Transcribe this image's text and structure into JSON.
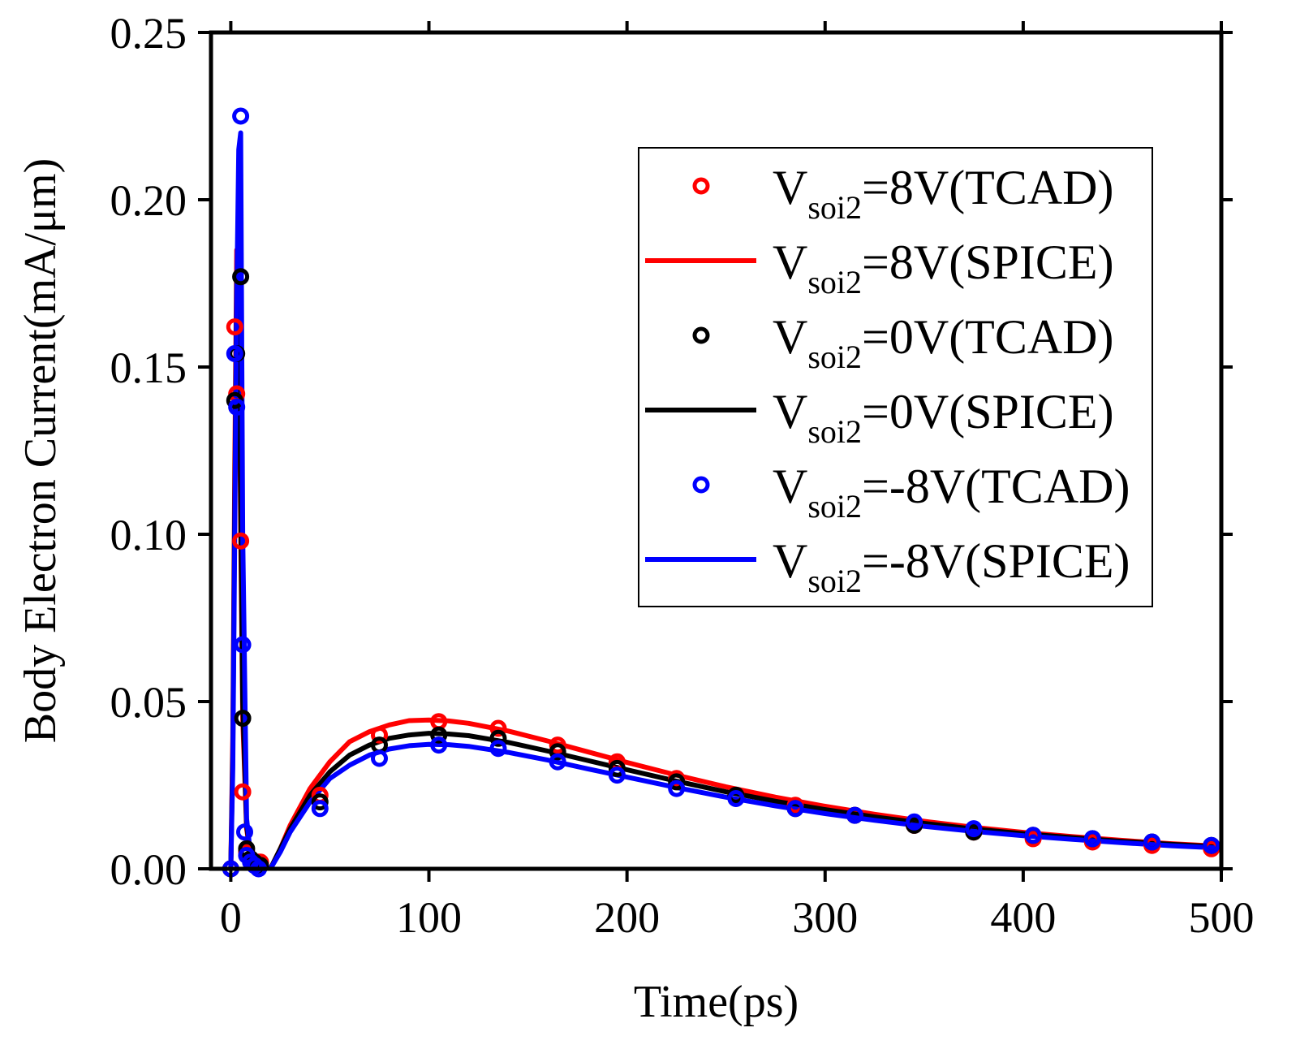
{
  "chart_data": {
    "type": "line",
    "title": "",
    "xlabel": "Time(ps)",
    "ylabel": "Body Electron Current(mA/μm)",
    "xlim": [
      -10,
      500
    ],
    "ylim": [
      0,
      0.25
    ],
    "xticks": [
      0,
      100,
      200,
      300,
      400,
      500
    ],
    "xtick_labels": [
      "0",
      "100",
      "200",
      "300",
      "400",
      "500"
    ],
    "yticks": [
      0,
      0.05,
      0.1,
      0.15,
      0.2,
      0.25
    ],
    "ytick_labels": [
      "0.00",
      "0.05",
      "0.10",
      "0.15",
      "0.20",
      "0.25"
    ],
    "legend_position": "top-right",
    "grid": false,
    "series": [
      {
        "name": "Vsoi2=8V(TCAD)",
        "legend_main": "V",
        "legend_sub": "soi2",
        "legend_rest": "=8V(TCAD)",
        "kind": "marker",
        "color": "#ff0000",
        "x": [
          0,
          2,
          3,
          5,
          6,
          8,
          10,
          12,
          14,
          15,
          45,
          75,
          105,
          135,
          165,
          195,
          225,
          255,
          285,
          315,
          345,
          375,
          405,
          435,
          465,
          495
        ],
        "y": [
          0,
          0.162,
          0.142,
          0.098,
          0.023,
          0.005,
          0.003,
          0.002,
          0.002,
          0.002,
          0.022,
          0.04,
          0.044,
          0.042,
          0.037,
          0.032,
          0.027,
          0.022,
          0.019,
          0.016,
          0.013,
          0.011,
          0.009,
          0.008,
          0.007,
          0.006
        ]
      },
      {
        "name": "Vsoi2=8V(SPICE)",
        "legend_main": "V",
        "legend_sub": "soi2",
        "legend_rest": "=8V(SPICE)",
        "kind": "line",
        "color": "#ff0000",
        "x": [
          0,
          1,
          2,
          3,
          4,
          5,
          6,
          8,
          10,
          14,
          18,
          20,
          25,
          30,
          40,
          50,
          60,
          70,
          80,
          90,
          100,
          110,
          120,
          140,
          160,
          180,
          200,
          225,
          250,
          275,
          300,
          325,
          350,
          375,
          400,
          425,
          450,
          475,
          500
        ],
        "y": [
          0,
          0.04,
          0.12,
          0.185,
          0.17,
          0.1,
          0.045,
          0.012,
          0.004,
          0.001,
          0.0,
          0.0,
          0.006,
          0.013,
          0.024,
          0.032,
          0.038,
          0.041,
          0.043,
          0.0443,
          0.0445,
          0.0442,
          0.0435,
          0.0412,
          0.0382,
          0.035,
          0.0318,
          0.028,
          0.0245,
          0.0214,
          0.0187,
          0.0163,
          0.0142,
          0.0124,
          0.0109,
          0.0096,
          0.0085,
          0.0075,
          0.0067
        ]
      },
      {
        "name": "Vsoi2=0V(TCAD)",
        "legend_main": "V",
        "legend_sub": "soi2",
        "legend_rest": "=0V(TCAD)",
        "kind": "marker",
        "color": "#000000",
        "x": [
          0,
          2,
          3,
          5,
          6,
          8,
          10,
          12,
          14,
          15,
          45,
          75,
          105,
          135,
          165,
          195,
          225,
          255,
          285,
          315,
          345,
          375,
          405,
          435,
          465,
          495
        ],
        "y": [
          0,
          0.14,
          0.154,
          0.177,
          0.045,
          0.006,
          0.003,
          0.002,
          0.001,
          0.001,
          0.02,
          0.037,
          0.04,
          0.039,
          0.035,
          0.03,
          0.026,
          0.022,
          0.018,
          0.016,
          0.013,
          0.011,
          0.01,
          0.009,
          0.008,
          0.007
        ]
      },
      {
        "name": "Vsoi2=0V(SPICE)",
        "legend_main": "V",
        "legend_sub": "soi2",
        "legend_rest": "=0V(SPICE)",
        "kind": "line",
        "color": "#000000",
        "x": [
          0,
          1,
          2,
          3,
          4,
          5,
          6,
          8,
          10,
          14,
          18,
          20,
          25,
          30,
          40,
          50,
          60,
          70,
          80,
          90,
          100,
          110,
          120,
          140,
          160,
          180,
          200,
          225,
          250,
          275,
          300,
          325,
          350,
          375,
          400,
          425,
          450,
          475,
          500
        ],
        "y": [
          0,
          0.035,
          0.11,
          0.175,
          0.175,
          0.11,
          0.05,
          0.013,
          0.004,
          0.001,
          0.0,
          0.0,
          0.006,
          0.012,
          0.022,
          0.029,
          0.034,
          0.037,
          0.039,
          0.04,
          0.0405,
          0.0403,
          0.0398,
          0.0378,
          0.0352,
          0.0324,
          0.0296,
          0.0262,
          0.023,
          0.0202,
          0.0177,
          0.0155,
          0.0136,
          0.0119,
          0.0105,
          0.0093,
          0.0082,
          0.0073,
          0.0065
        ]
      },
      {
        "name": "Vsoi2=-8V(TCAD)",
        "legend_main": "V",
        "legend_sub": "soi2",
        "legend_rest": "=-8V(TCAD)",
        "kind": "marker",
        "color": "#0000ff",
        "x": [
          0,
          2,
          3,
          5,
          6,
          7,
          8,
          10,
          12,
          14,
          45,
          75,
          105,
          135,
          165,
          195,
          225,
          255,
          285,
          315,
          345,
          375,
          405,
          435,
          465,
          495
        ],
        "y": [
          0,
          0.154,
          0.138,
          0.225,
          0.067,
          0.011,
          0.004,
          0.002,
          0.001,
          0.0,
          0.018,
          0.033,
          0.037,
          0.036,
          0.032,
          0.028,
          0.024,
          0.021,
          0.018,
          0.016,
          0.014,
          0.012,
          0.01,
          0.009,
          0.008,
          0.007
        ]
      },
      {
        "name": "Vsoi2=-8V(SPICE)",
        "legend_main": "V",
        "legend_sub": "soi2",
        "legend_rest": "=-8V(SPICE)",
        "kind": "line",
        "color": "#0000ff",
        "x": [
          0,
          1,
          2,
          3,
          4,
          5,
          6,
          8,
          10,
          14,
          18,
          20,
          25,
          30,
          40,
          50,
          60,
          70,
          80,
          90,
          100,
          110,
          120,
          140,
          160,
          180,
          200,
          225,
          250,
          275,
          300,
          325,
          350,
          375,
          400,
          425,
          450,
          475,
          500
        ],
        "y": [
          0,
          0.03,
          0.1,
          0.17,
          0.215,
          0.22,
          0.1,
          0.015,
          0.004,
          0.001,
          0.0,
          0.0,
          0.005,
          0.011,
          0.02,
          0.027,
          0.031,
          0.034,
          0.0358,
          0.0368,
          0.0372,
          0.0371,
          0.0366,
          0.0348,
          0.0325,
          0.0299,
          0.0274,
          0.0243,
          0.0214,
          0.0188,
          0.0165,
          0.0145,
          0.0127,
          0.0112,
          0.0099,
          0.0088,
          0.0078,
          0.0069,
          0.0062
        ]
      }
    ]
  }
}
